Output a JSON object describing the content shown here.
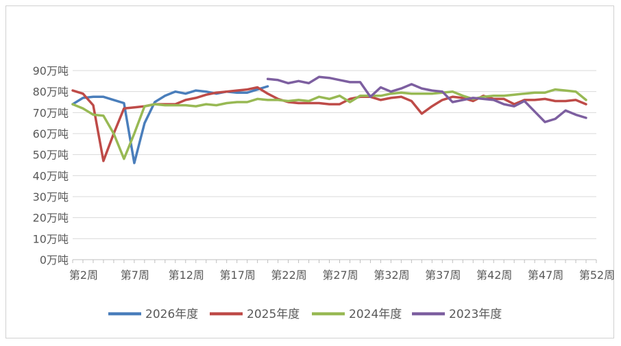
{
  "chart_data": {
    "type": "line",
    "title": "",
    "xlabel": "",
    "ylabel": "",
    "y_unit": "万吨",
    "ylim": [
      0,
      90
    ],
    "y_ticks": [
      {
        "value": 0,
        "label": "0万吨"
      },
      {
        "value": 10,
        "label": "10万吨"
      },
      {
        "value": 20,
        "label": "20万吨"
      },
      {
        "value": 30,
        "label": "30万吨"
      },
      {
        "value": 40,
        "label": "40万吨"
      },
      {
        "value": 50,
        "label": "50万吨"
      },
      {
        "value": 60,
        "label": "60万吨"
      },
      {
        "value": 70,
        "label": "70万吨"
      },
      {
        "value": 80,
        "label": "80万吨"
      },
      {
        "value": 90,
        "label": "90万吨"
      }
    ],
    "x_ticks": [
      {
        "week": 2,
        "label": "第2周"
      },
      {
        "week": 7,
        "label": "第7周"
      },
      {
        "week": 12,
        "label": "第12周"
      },
      {
        "week": 17,
        "label": "第17周"
      },
      {
        "week": 22,
        "label": "第22周"
      },
      {
        "week": 27,
        "label": "第27周"
      },
      {
        "week": 32,
        "label": "第32周"
      },
      {
        "week": 37,
        "label": "第37周"
      },
      {
        "week": 42,
        "label": "第42周"
      },
      {
        "week": 47,
        "label": "第47周"
      },
      {
        "week": 52,
        "label": "第52周"
      }
    ],
    "x_range": [
      2,
      53
    ],
    "grid": true,
    "legend_position": "bottom",
    "series": [
      {
        "name": "2026年度",
        "color": "#4a7ebb",
        "start_week": 2,
        "values": [
          74,
          77,
          77.5,
          77.5,
          76,
          74.5,
          46,
          65,
          75,
          78,
          80,
          79,
          80.5,
          80,
          79,
          80,
          79.5,
          79.5,
          81,
          82.5
        ]
      },
      {
        "name": "2025年度",
        "color": "#be4b48",
        "start_week": 2,
        "values": [
          80.5,
          79,
          73.5,
          47,
          60,
          72,
          72.5,
          73,
          74,
          74,
          74,
          76,
          77,
          78.5,
          79.5,
          80,
          80.5,
          81,
          82,
          79,
          76.5,
          75,
          74.5,
          74.5,
          74.5,
          74,
          74,
          76.5,
          77.5,
          77.5,
          76,
          77,
          77.5,
          75.5,
          69.5,
          73,
          76,
          77.5,
          77,
          75.5,
          78,
          76.5,
          76.5,
          74,
          76,
          76,
          76.5,
          75.5,
          75.5,
          76,
          74
        ]
      },
      {
        "name": "2024年度",
        "color": "#98b954",
        "start_week": 2,
        "values": [
          74,
          72,
          69,
          68.5,
          60,
          48,
          60,
          73,
          74,
          73.5,
          73.5,
          73.5,
          73,
          74,
          73.5,
          74.5,
          75,
          75,
          76.5,
          76,
          76,
          75.5,
          76,
          75.5,
          77.5,
          76.5,
          78,
          75,
          78,
          78,
          78,
          79,
          79.5,
          79,
          79,
          79,
          79.5,
          80,
          78,
          76.5,
          77.5,
          78,
          78,
          78.5,
          79,
          79.5,
          79.5,
          81,
          80.5,
          80,
          76
        ]
      },
      {
        "name": "2023年度",
        "color": "#7d5fa0",
        "start_week": 21,
        "values": [
          86,
          85.5,
          84,
          85,
          84,
          87,
          86.5,
          85.5,
          84.5,
          84.5,
          77.5,
          82,
          80,
          81.5,
          83.5,
          81.5,
          80.5,
          80,
          75,
          76,
          77,
          76.5,
          76,
          74,
          73,
          75.5,
          70.5,
          65.5,
          67,
          71,
          69,
          67.5
        ]
      }
    ]
  }
}
